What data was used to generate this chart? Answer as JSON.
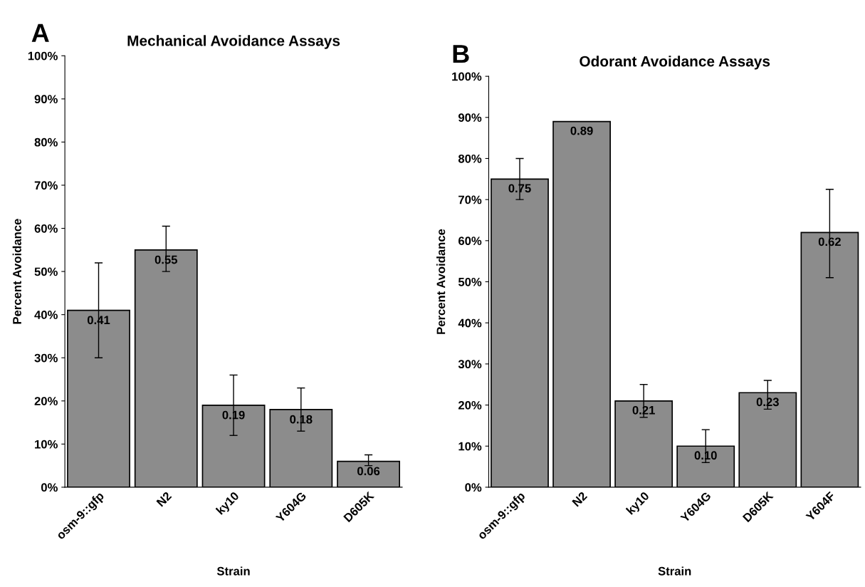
{
  "chart_data": [
    {
      "type": "bar",
      "title": "Mechanical Avoidance Assays",
      "xlabel": "Strain",
      "ylabel": "Percent Avoidance",
      "annotations": [
        "A"
      ],
      "categories": [
        "osm-9::gfp",
        "N2",
        "ky10",
        "Y604G",
        "D605K"
      ],
      "values": [
        0.41,
        0.55,
        0.19,
        0.18,
        0.06
      ],
      "color": "#8c8c8c",
      "errors": [
        [
          0.3,
          0.52
        ],
        [
          0.5,
          0.605
        ],
        [
          0.12,
          0.26
        ],
        [
          0.13,
          0.23
        ],
        [
          0.05,
          0.075
        ]
      ],
      "value_labels": [
        "0.41",
        "0.55",
        "0.19",
        "0.18",
        "0.06"
      ],
      "ylim": [
        0,
        1
      ],
      "yticks": [
        {
          "value": 0,
          "label": "0%"
        },
        {
          "value": 0.1,
          "label": "10%"
        },
        {
          "value": 0.2,
          "label": "20%"
        },
        {
          "value": 0.3,
          "label": "30%"
        },
        {
          "value": 0.4,
          "label": "40%"
        },
        {
          "value": 0.5,
          "label": "50%"
        },
        {
          "value": 0.6,
          "label": "60%"
        },
        {
          "value": 0.7,
          "label": "70%"
        },
        {
          "value": 0.8,
          "label": "80%"
        },
        {
          "value": 0.9,
          "label": "90%"
        },
        {
          "value": 1,
          "label": "100%"
        }
      ],
      "grid": false,
      "legend": false
    },
    {
      "type": "bar",
      "title": "Odorant Avoidance Assays",
      "xlabel": "Strain",
      "ylabel": "Percent Avoidance",
      "annotations": [
        "B"
      ],
      "categories": [
        "osm-9::gfp",
        "N2",
        "ky10",
        "Y604G",
        "D605K",
        "Y604F"
      ],
      "values": [
        0.75,
        0.89,
        0.21,
        0.1,
        0.23,
        0.62
      ],
      "color": "#8c8c8c",
      "errors": [
        [
          0.7,
          0.8
        ],
        null,
        [
          0.17,
          0.25
        ],
        [
          0.06,
          0.14
        ],
        [
          0.19,
          0.26
        ],
        [
          0.51,
          0.725
        ]
      ],
      "value_labels": [
        "0.75",
        "0.89",
        "0.21",
        "0.10",
        "0.23",
        "0.62"
      ],
      "ylim": [
        0,
        1
      ],
      "yticks": [
        {
          "value": 0,
          "label": "0%"
        },
        {
          "value": 0.1,
          "label": "10%"
        },
        {
          "value": 0.2,
          "label": "20%"
        },
        {
          "value": 0.3,
          "label": "30%"
        },
        {
          "value": 0.4,
          "label": "40%"
        },
        {
          "value": 0.5,
          "label": "50%"
        },
        {
          "value": 0.6,
          "label": "60%"
        },
        {
          "value": 0.7,
          "label": "70%"
        },
        {
          "value": 0.8,
          "label": "80%"
        },
        {
          "value": 0.9,
          "label": "90%"
        },
        {
          "value": 1,
          "label": "100%"
        }
      ],
      "grid": false,
      "legend": false
    }
  ]
}
